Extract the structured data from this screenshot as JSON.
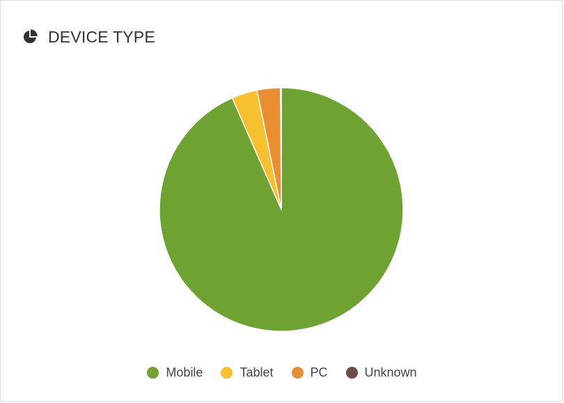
{
  "card": {
    "title": "DEVICE TYPE",
    "icon": "pie-chart-icon"
  },
  "chart_data": {
    "type": "pie",
    "title": "DEVICE TYPE",
    "legend_position": "bottom-center",
    "slices": [
      {
        "name": "Mobile",
        "value": 93.4,
        "color": "#6fa331"
      },
      {
        "name": "Tablet",
        "value": 3.4,
        "color": "#f6c02f"
      },
      {
        "name": "PC",
        "value": 3.1,
        "color": "#ea8e32"
      },
      {
        "name": "Unknown",
        "value": 0.1,
        "color": "#6d4c41"
      }
    ]
  }
}
